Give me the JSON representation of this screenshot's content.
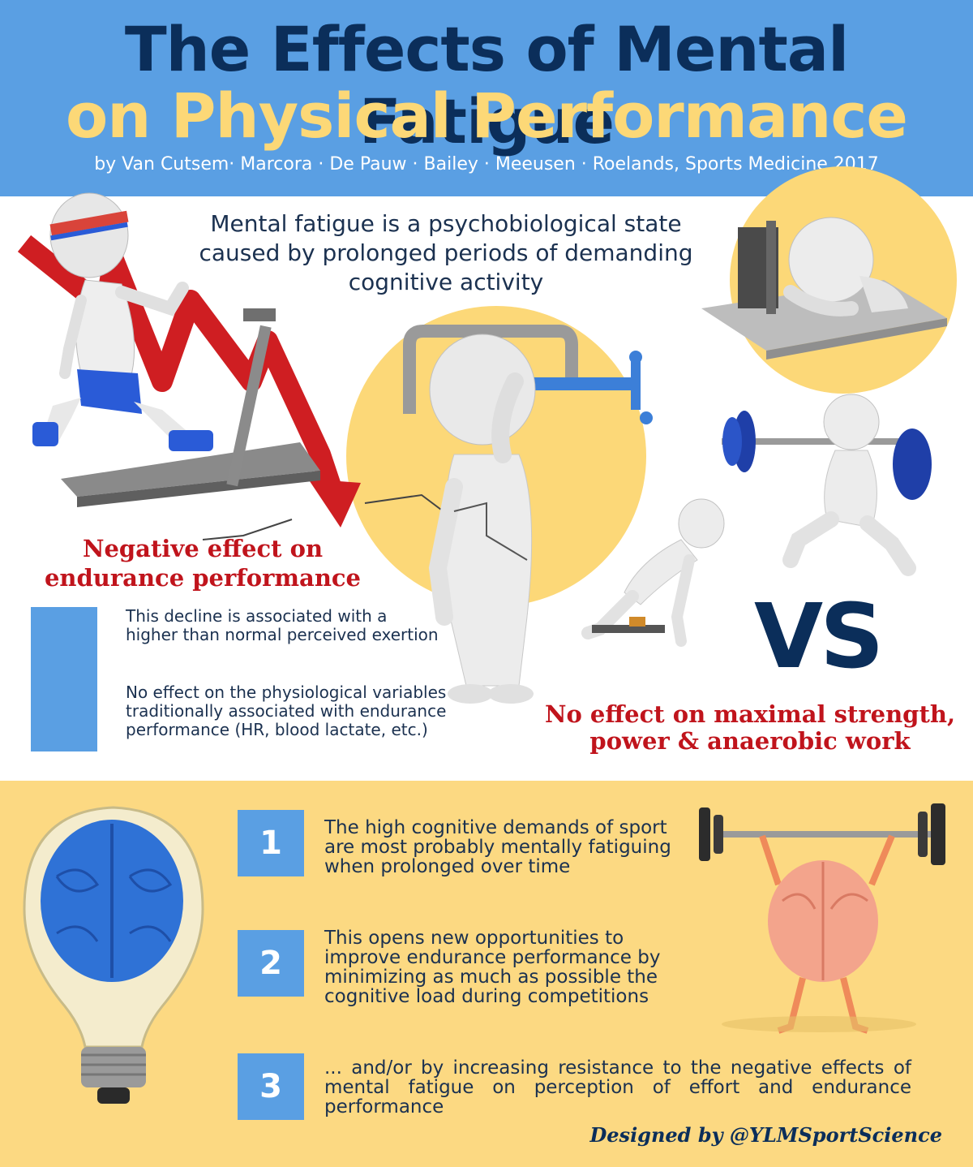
{
  "header": {
    "title_line1": "The Effects of Mental Fatigue",
    "title_line2": "on Physical Performance",
    "byline": "by Van Cutsem· Marcora · De Pauw · Bailey · Meeusen · Roelands, Sports Medicine 2017"
  },
  "middle": {
    "definition": "Mental fatigue is a psychobiological state caused by prolonged periods of demanding cognitive activity",
    "negative_effect": "Negative effect on endurance performance",
    "note_1": "This decline is associated with a higher than normal perceived exertion",
    "note_2": "No effect on the physiological variables traditionally associated with endurance performance (HR, blood lactate, etc.)",
    "vs": "VS",
    "no_effect": "No effect on maximal strength, power & anaerobic work"
  },
  "points": [
    {
      "number": "1",
      "text": "The high cognitive demands of sport are most probably mentally fatiguing when prolonged over time"
    },
    {
      "number": "2",
      "text": "This opens new opportunities to improve endurance performance by minimizing as much as possible the cognitive load during competitions"
    },
    {
      "number": "3",
      "text": "... and/or by increasing resistance to the negative effects of mental fatigue on perception of effort and endurance performance"
    }
  ],
  "footer": {
    "designer": "Designed by @YLMSportScience"
  },
  "colors": {
    "header_blue": "#5a9fe3",
    "navy": "#0b2e5a",
    "title_yellow": "#fcd877",
    "accent_red": "#c0141c",
    "panel_yellow": "#fcd982",
    "circle_yellow": "#fcd878",
    "brain_blue": "#2f72d6",
    "brain_pink": "#f3a48c"
  },
  "icons": [
    "treadmill-runner-icon",
    "decline-arrow-icon",
    "clamp-head-figure-icon",
    "computer-desk-figure-icon",
    "barbell-lift-figure-icon",
    "sprint-start-figure-icon",
    "lightbulb-brain-icon",
    "brain-weightlifter-icon"
  ]
}
